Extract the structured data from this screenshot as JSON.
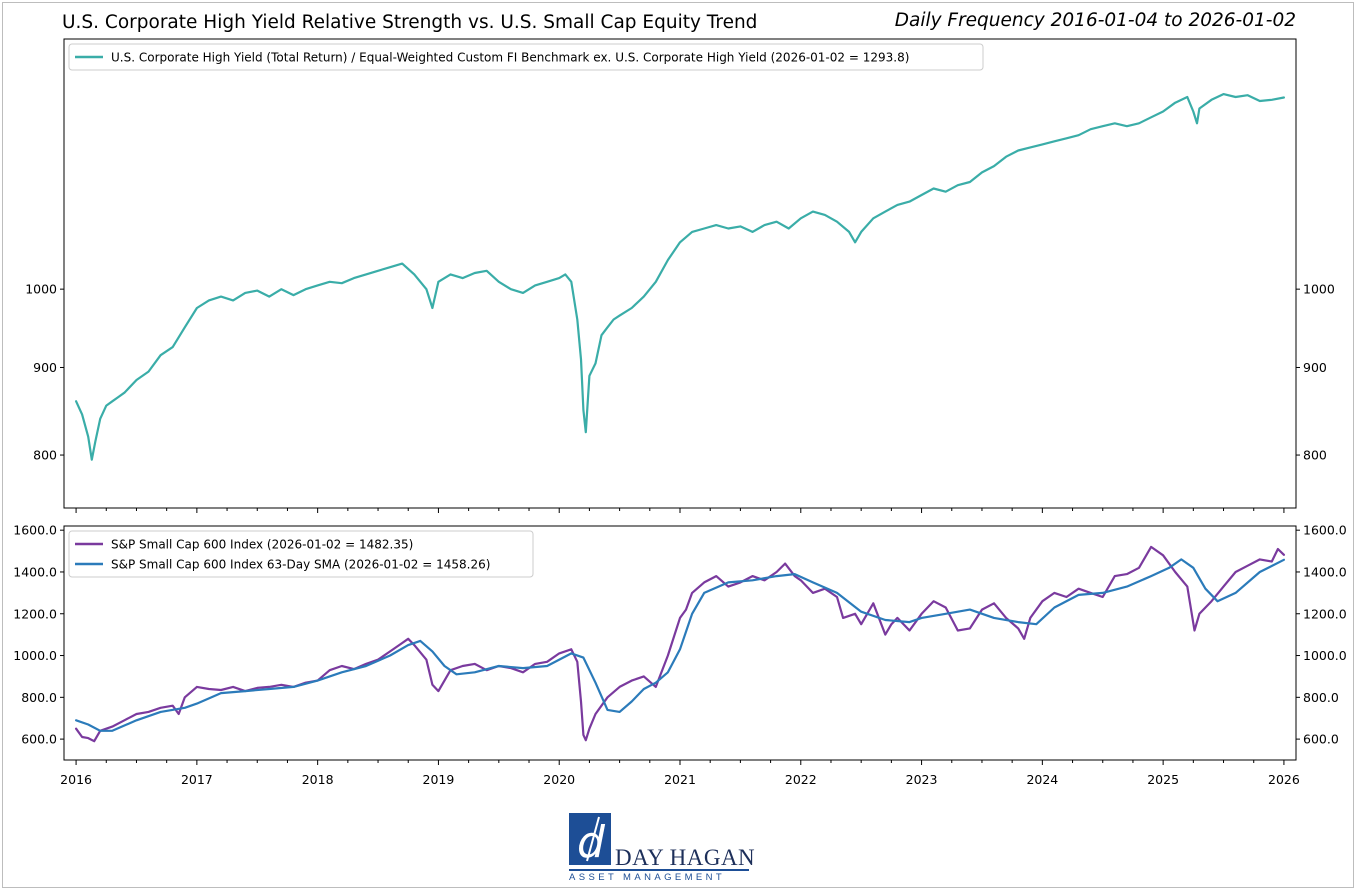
{
  "header": {
    "title": "U.S. Corporate High Yield Relative Strength vs. U.S. Small Cap Equity Trend",
    "subtitle": "Daily Frequency 2016-01-04 to 2026-01-02"
  },
  "logo": {
    "mark": "d",
    "name": "DAY HAGAN",
    "tagline": "ASSET MANAGEMENT"
  },
  "colors": {
    "ratio_line": "#3aada8",
    "price_line": "#7a3a9e",
    "sma_line": "#2b7bba",
    "brand": "#1d4e96"
  },
  "chart_data": [
    {
      "type": "line",
      "panel": "top",
      "title": "",
      "xlabel": "",
      "ylabel": "",
      "log_scale": true,
      "grid": false,
      "legend_position": "upper-left",
      "xlim": [
        2015.9,
        2026.1
      ],
      "ylim": [
        745,
        1400
      ],
      "yticks": [
        800,
        900,
        1000
      ],
      "ytick_labels": [
        "800",
        "900",
        "1000"
      ],
      "xticks": [
        2016,
        2017,
        2018,
        2019,
        2020,
        2021,
        2022,
        2023,
        2024,
        2025,
        2026
      ],
      "xtick_labels": [
        "2016",
        "2017",
        "2018",
        "2019",
        "2020",
        "2021",
        "2022",
        "2023",
        "2024",
        "2025",
        "2026"
      ],
      "series": [
        {
          "name": "U.S. Corporate High Yield (Total Return) / Equal-Weighted Custom FI Benchmark ex. U.S. Corporate High Yield (2026-01-02 = 1293.8)",
          "color": "#3aada8",
          "x": [
            2016.0,
            2016.05,
            2016.1,
            2016.13,
            2016.16,
            2016.2,
            2016.25,
            2016.3,
            2016.35,
            2016.4,
            2016.5,
            2016.6,
            2016.7,
            2016.8,
            2016.9,
            2017.0,
            2017.1,
            2017.2,
            2017.3,
            2017.4,
            2017.5,
            2017.6,
            2017.7,
            2017.8,
            2017.9,
            2018.0,
            2018.1,
            2018.2,
            2018.3,
            2018.4,
            2018.5,
            2018.6,
            2018.7,
            2018.8,
            2018.9,
            2018.95,
            2019.0,
            2019.1,
            2019.2,
            2019.3,
            2019.4,
            2019.5,
            2019.6,
            2019.7,
            2019.8,
            2019.9,
            2020.0,
            2020.05,
            2020.1,
            2020.15,
            2020.18,
            2020.2,
            2020.22,
            2020.25,
            2020.3,
            2020.35,
            2020.4,
            2020.45,
            2020.5,
            2020.6,
            2020.7,
            2020.8,
            2020.9,
            2021.0,
            2021.1,
            2021.2,
            2021.3,
            2021.4,
            2021.5,
            2021.6,
            2021.7,
            2021.8,
            2021.9,
            2022.0,
            2022.1,
            2022.2,
            2022.3,
            2022.4,
            2022.45,
            2022.5,
            2022.6,
            2022.7,
            2022.8,
            2022.9,
            2023.0,
            2023.1,
            2023.2,
            2023.3,
            2023.4,
            2023.5,
            2023.6,
            2023.7,
            2023.8,
            2023.9,
            2024.0,
            2024.1,
            2024.2,
            2024.3,
            2024.4,
            2024.5,
            2024.6,
            2024.7,
            2024.8,
            2024.9,
            2025.0,
            2025.1,
            2025.2,
            2025.25,
            2025.28,
            2025.3,
            2025.4,
            2025.5,
            2025.6,
            2025.7,
            2025.8,
            2025.9,
            2026.0
          ],
          "y": [
            860,
            845,
            820,
            795,
            815,
            840,
            855,
            860,
            865,
            870,
            885,
            895,
            915,
            925,
            950,
            975,
            985,
            990,
            985,
            995,
            998,
            990,
            1000,
            992,
            1000,
            1005,
            1010,
            1008,
            1015,
            1020,
            1025,
            1030,
            1035,
            1020,
            1000,
            975,
            1010,
            1020,
            1015,
            1022,
            1025,
            1010,
            1000,
            995,
            1005,
            1010,
            1015,
            1020,
            1010,
            960,
            910,
            850,
            825,
            890,
            905,
            940,
            950,
            960,
            965,
            975,
            990,
            1010,
            1040,
            1065,
            1080,
            1085,
            1090,
            1085,
            1088,
            1080,
            1090,
            1095,
            1085,
            1100,
            1110,
            1105,
            1095,
            1080,
            1065,
            1080,
            1100,
            1110,
            1120,
            1125,
            1135,
            1145,
            1140,
            1150,
            1155,
            1170,
            1180,
            1195,
            1205,
            1210,
            1215,
            1220,
            1225,
            1230,
            1240,
            1245,
            1250,
            1245,
            1250,
            1260,
            1270,
            1285,
            1295,
            1270,
            1250,
            1275,
            1290,
            1300,
            1295,
            1298,
            1288,
            1290,
            1294
          ]
        }
      ]
    },
    {
      "type": "line",
      "panel": "bottom",
      "title": "",
      "xlabel": "",
      "ylabel": "",
      "grid": false,
      "legend_position": "upper-left",
      "xlim": [
        2015.9,
        2026.1
      ],
      "ylim": [
        500,
        1620
      ],
      "yticks": [
        600,
        800,
        1000,
        1200,
        1400,
        1600
      ],
      "ytick_labels": [
        "600.0",
        "800.0",
        "1000.0",
        "1200.0",
        "1400.0",
        "1600.0"
      ],
      "xticks": [
        2016,
        2017,
        2018,
        2019,
        2020,
        2021,
        2022,
        2023,
        2024,
        2025,
        2026
      ],
      "xtick_labels": [
        "2016",
        "2017",
        "2018",
        "2019",
        "2020",
        "2021",
        "2022",
        "2023",
        "2024",
        "2025",
        "2026"
      ],
      "series": [
        {
          "name": "S&P Small Cap 600 Index (2026-01-02 = 1482.35)",
          "color": "#7a3a9e",
          "x": [
            2016.0,
            2016.05,
            2016.1,
            2016.15,
            2016.2,
            2016.3,
            2016.4,
            2016.5,
            2016.6,
            2016.7,
            2016.8,
            2016.85,
            2016.9,
            2017.0,
            2017.1,
            2017.2,
            2017.3,
            2017.4,
            2017.5,
            2017.6,
            2017.7,
            2017.8,
            2017.9,
            2018.0,
            2018.1,
            2018.2,
            2018.3,
            2018.4,
            2018.5,
            2018.6,
            2018.7,
            2018.75,
            2018.8,
            2018.9,
            2018.95,
            2019.0,
            2019.1,
            2019.2,
            2019.3,
            2019.4,
            2019.5,
            2019.6,
            2019.7,
            2019.8,
            2019.9,
            2020.0,
            2020.1,
            2020.15,
            2020.18,
            2020.2,
            2020.22,
            2020.25,
            2020.3,
            2020.4,
            2020.5,
            2020.6,
            2020.7,
            2020.8,
            2020.9,
            2021.0,
            2021.05,
            2021.1,
            2021.2,
            2021.3,
            2021.4,
            2021.5,
            2021.6,
            2021.7,
            2021.8,
            2021.87,
            2021.95,
            2022.0,
            2022.1,
            2022.2,
            2022.3,
            2022.35,
            2022.45,
            2022.5,
            2022.6,
            2022.7,
            2022.75,
            2022.8,
            2022.9,
            2023.0,
            2023.1,
            2023.2,
            2023.3,
            2023.4,
            2023.5,
            2023.6,
            2023.7,
            2023.8,
            2023.85,
            2023.9,
            2024.0,
            2024.1,
            2024.2,
            2024.3,
            2024.4,
            2024.5,
            2024.6,
            2024.7,
            2024.8,
            2024.9,
            2025.0,
            2025.1,
            2025.2,
            2025.26,
            2025.3,
            2025.4,
            2025.5,
            2025.6,
            2025.7,
            2025.8,
            2025.9,
            2025.95,
            2026.0
          ],
          "y": [
            650,
            610,
            605,
            590,
            640,
            660,
            690,
            720,
            730,
            750,
            760,
            720,
            800,
            850,
            840,
            835,
            850,
            830,
            845,
            850,
            860,
            850,
            870,
            880,
            930,
            950,
            935,
            960,
            980,
            1020,
            1060,
            1080,
            1050,
            980,
            860,
            830,
            930,
            950,
            960,
            930,
            950,
            940,
            920,
            960,
            970,
            1010,
            1030,
            970,
            780,
            620,
            595,
            650,
            720,
            800,
            850,
            880,
            900,
            850,
            1000,
            1180,
            1220,
            1300,
            1350,
            1380,
            1330,
            1350,
            1380,
            1360,
            1400,
            1440,
            1380,
            1360,
            1300,
            1320,
            1280,
            1180,
            1200,
            1150,
            1250,
            1100,
            1150,
            1180,
            1120,
            1200,
            1260,
            1230,
            1120,
            1130,
            1220,
            1250,
            1180,
            1130,
            1080,
            1180,
            1260,
            1300,
            1280,
            1320,
            1300,
            1280,
            1380,
            1390,
            1420,
            1520,
            1480,
            1400,
            1330,
            1120,
            1200,
            1260,
            1330,
            1400,
            1430,
            1460,
            1450,
            1510,
            1482
          ]
        },
        {
          "name": "S&P Small Cap 600 Index 63-Day SMA (2026-01-02 = 1458.26)",
          "color": "#2b7bba",
          "x": [
            2016.0,
            2016.1,
            2016.2,
            2016.3,
            2016.5,
            2016.7,
            2016.9,
            2017.0,
            2017.2,
            2017.4,
            2017.6,
            2017.8,
            2018.0,
            2018.2,
            2018.4,
            2018.6,
            2018.75,
            2018.85,
            2018.95,
            2019.05,
            2019.15,
            2019.3,
            2019.5,
            2019.7,
            2019.9,
            2020.1,
            2020.2,
            2020.3,
            2020.4,
            2020.5,
            2020.6,
            2020.7,
            2020.8,
            2020.9,
            2021.0,
            2021.1,
            2021.2,
            2021.4,
            2021.6,
            2021.8,
            2021.95,
            2022.1,
            2022.3,
            2022.5,
            2022.7,
            2022.9,
            2023.0,
            2023.2,
            2023.4,
            2023.6,
            2023.8,
            2023.95,
            2024.1,
            2024.3,
            2024.5,
            2024.7,
            2024.9,
            2025.05,
            2025.15,
            2025.25,
            2025.35,
            2025.45,
            2025.6,
            2025.8,
            2026.0
          ],
          "y": [
            690,
            670,
            640,
            640,
            690,
            730,
            750,
            770,
            820,
            830,
            840,
            850,
            880,
            920,
            950,
            1000,
            1050,
            1070,
            1020,
            950,
            910,
            920,
            950,
            940,
            950,
            1010,
            990,
            870,
            740,
            730,
            780,
            840,
            870,
            920,
            1030,
            1200,
            1300,
            1350,
            1360,
            1380,
            1390,
            1350,
            1300,
            1210,
            1170,
            1160,
            1180,
            1200,
            1220,
            1180,
            1160,
            1150,
            1230,
            1290,
            1300,
            1330,
            1380,
            1420,
            1460,
            1420,
            1320,
            1260,
            1300,
            1400,
            1458
          ]
        }
      ]
    }
  ]
}
